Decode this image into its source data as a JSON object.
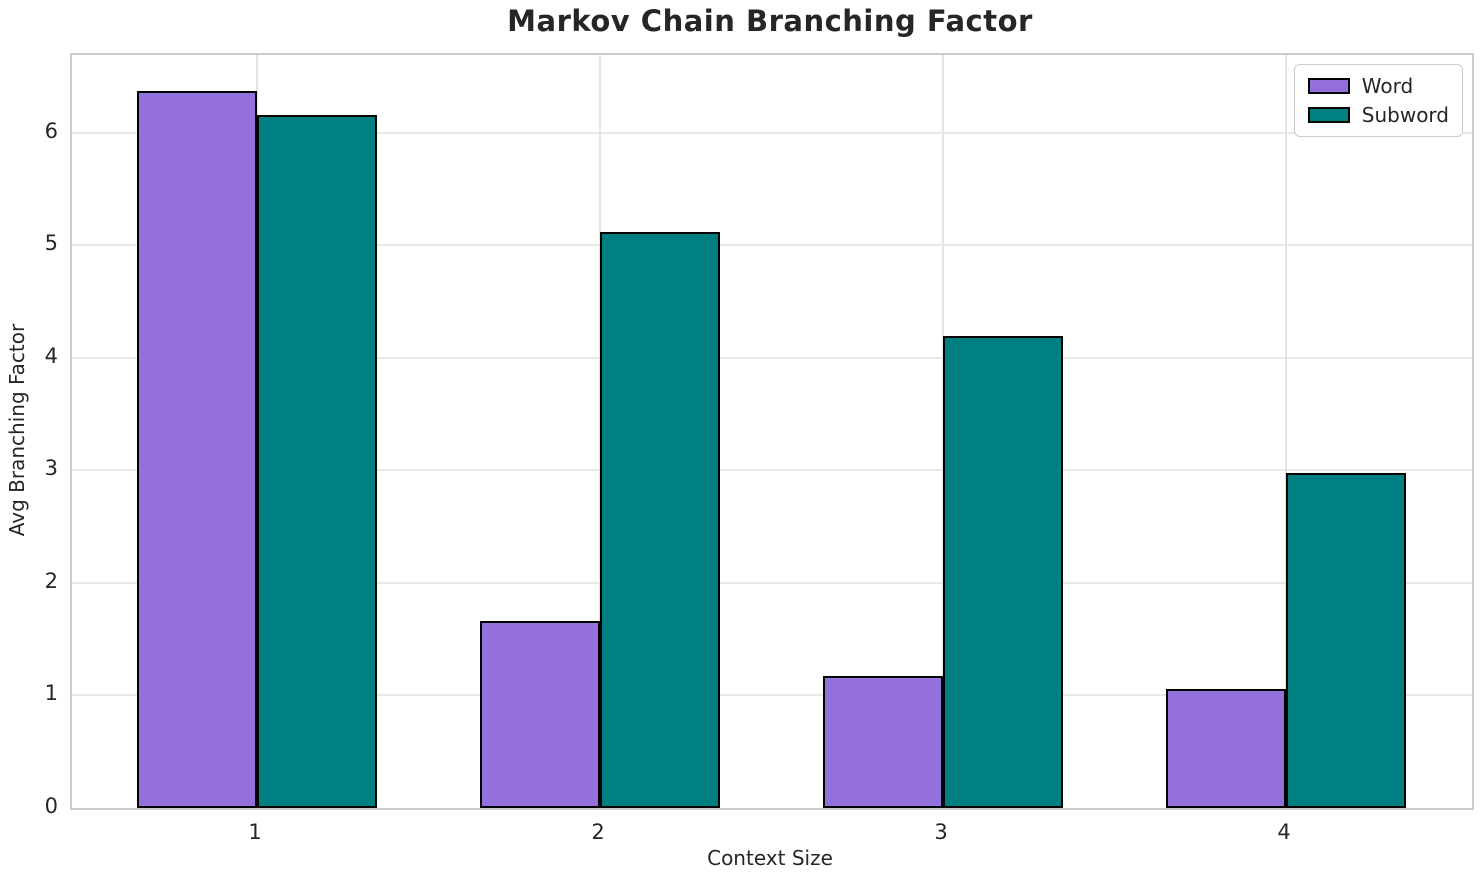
{
  "chart_data": {
    "type": "bar",
    "title": "Markov Chain Branching Factor",
    "xlabel": "Context Size",
    "ylabel": "Avg Branching Factor",
    "categories": [
      "1",
      "2",
      "3",
      "4"
    ],
    "series": [
      {
        "name": "Word",
        "color": "#9370DB",
        "values": [
          6.37,
          1.66,
          1.17,
          1.06
        ]
      },
      {
        "name": "Subword",
        "color": "#008080",
        "values": [
          6.16,
          5.12,
          4.19,
          2.98
        ]
      }
    ],
    "bar_edge_color": "#000000",
    "bar_width_units": 0.35,
    "y_ticks": [
      0,
      1,
      2,
      3,
      4,
      5,
      6
    ],
    "ylim": [
      0,
      6.69
    ],
    "grid": true,
    "legend_position": "upper right",
    "colors": {
      "background": "#ffffff",
      "grid": "#e8e8e8",
      "spine": "#cccccc",
      "text": "#262626"
    }
  }
}
